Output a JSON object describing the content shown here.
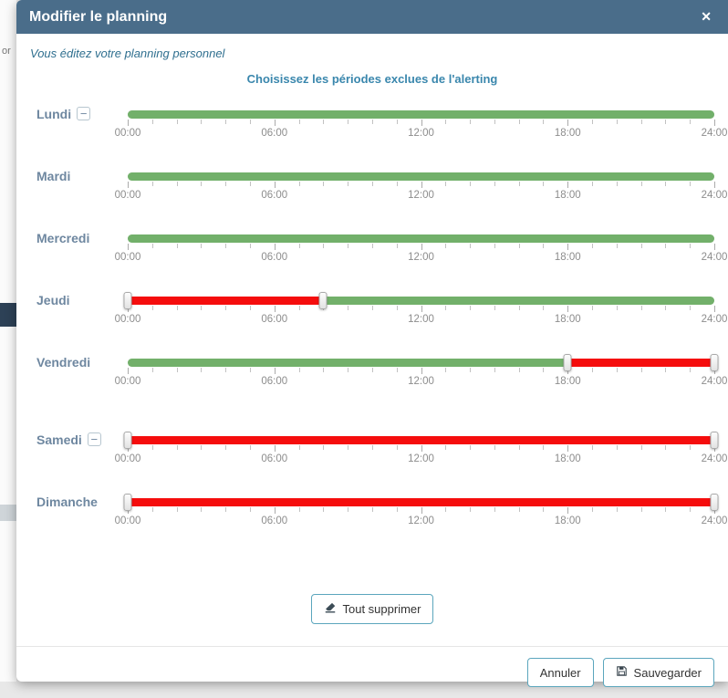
{
  "background": {
    "partial_text": "or"
  },
  "modal": {
    "title": "Modifier le planning",
    "close_symbol": "✕",
    "subtitle": "Vous éditez votre planning personnel",
    "section_title": "Choisissez les périodes exclues de l'alerting"
  },
  "slider": {
    "min": 0,
    "max": 24,
    "tick_labels": [
      "00:00",
      "06:00",
      "12:00",
      "18:00",
      "24:00"
    ],
    "tick_values": [
      0,
      6,
      12,
      18,
      24
    ],
    "remove_symbol": "−"
  },
  "colors": {
    "header_bg": "#4a6d8a",
    "accent": "#3a87ad",
    "button_border": "#5ba6bd",
    "green": "#72b06a",
    "red": "#f50d0d"
  },
  "days": [
    {
      "label": "Lundi",
      "removable": true,
      "extra_gap": false,
      "segments": [
        {
          "start": 0,
          "end": 24,
          "color": "green"
        }
      ],
      "handles": []
    },
    {
      "label": "Mardi",
      "removable": false,
      "extra_gap": false,
      "segments": [
        {
          "start": 0,
          "end": 24,
          "color": "green"
        }
      ],
      "handles": []
    },
    {
      "label": "Mercredi",
      "removable": false,
      "extra_gap": false,
      "segments": [
        {
          "start": 0,
          "end": 24,
          "color": "green"
        }
      ],
      "handles": []
    },
    {
      "label": "Jeudi",
      "removable": false,
      "extra_gap": false,
      "segments": [
        {
          "start": 0,
          "end": 8,
          "color": "red"
        },
        {
          "start": 8,
          "end": 24,
          "color": "green"
        }
      ],
      "handles": [
        0,
        8
      ]
    },
    {
      "label": "Vendredi",
      "removable": false,
      "extra_gap": false,
      "segments": [
        {
          "start": 0,
          "end": 18,
          "color": "green"
        },
        {
          "start": 18,
          "end": 24,
          "color": "red"
        }
      ],
      "handles": [
        18,
        24
      ]
    },
    {
      "label": "Samedi",
      "removable": true,
      "extra_gap": true,
      "segments": [
        {
          "start": 0,
          "end": 24,
          "color": "red"
        }
      ],
      "handles": [
        0,
        24
      ]
    },
    {
      "label": "Dimanche",
      "removable": false,
      "extra_gap": false,
      "segments": [
        {
          "start": 0,
          "end": 24,
          "color": "red"
        }
      ],
      "handles": [
        0,
        24
      ]
    }
  ],
  "actions": {
    "clear_all_label": "Tout supprimer",
    "cancel_label": "Annuler",
    "save_label": "Sauvegarder"
  }
}
